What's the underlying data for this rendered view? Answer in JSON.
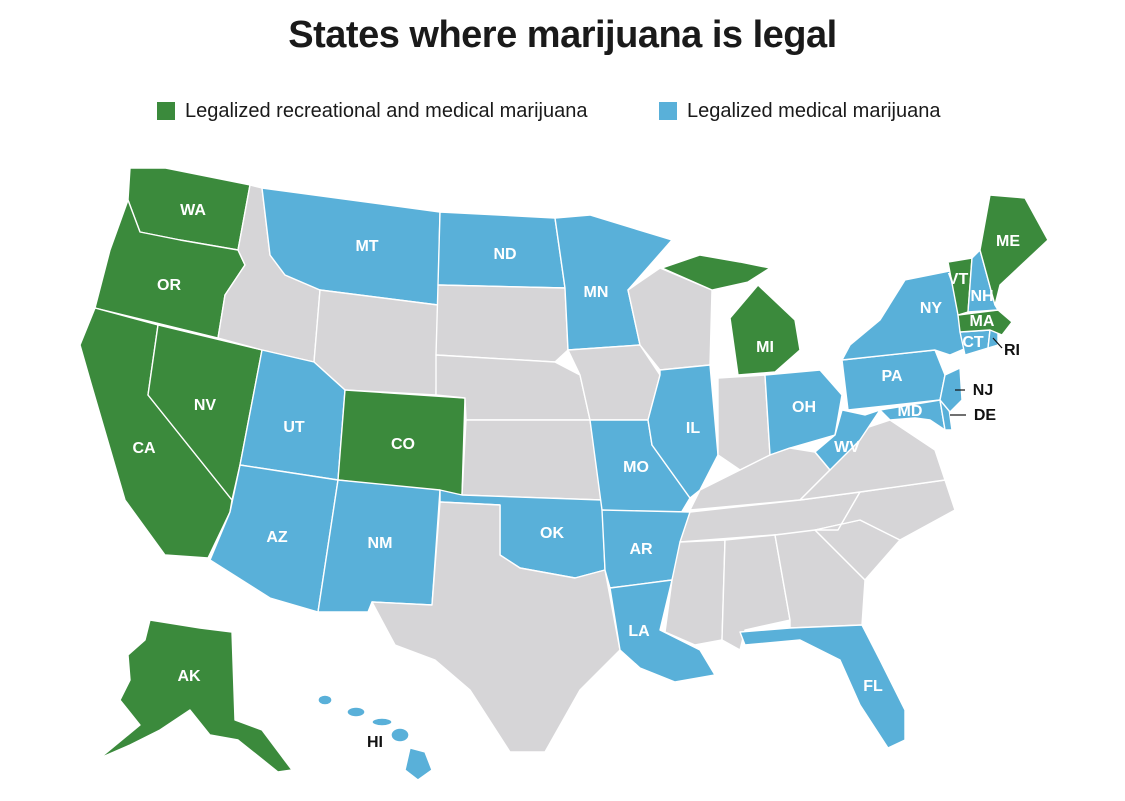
{
  "title": "States where marijuana is legal",
  "colors": {
    "recreational": "#3b8a3c",
    "medical": "#59b0d9",
    "none": "#d6d5d7"
  },
  "legend": [
    {
      "key": "recreational",
      "label": "Legalized recreational and medical marijuana"
    },
    {
      "key": "medical",
      "label": "Legalized medical marijuana"
    }
  ],
  "states": {
    "WA": "recreational",
    "OR": "recreational",
    "CA": "recreational",
    "NV": "recreational",
    "CO": "recreational",
    "AK": "recreational",
    "MI": "recreational",
    "ME": "recreational",
    "VT": "recreational",
    "MA": "recreational",
    "MT": "medical",
    "ND": "medical",
    "MN": "medical",
    "UT": "medical",
    "AZ": "medical",
    "NM": "medical",
    "OK": "medical",
    "AR": "medical",
    "LA": "medical",
    "MO": "medical",
    "IL": "medical",
    "OH": "medical",
    "WV": "medical",
    "PA": "medical",
    "NY": "medical",
    "NH": "medical",
    "CT": "medical",
    "RI": "medical",
    "NJ": "medical",
    "DE": "medical",
    "MD": "medical",
    "FL": "medical",
    "HI": "medical",
    "ID": "none",
    "WY": "none",
    "SD": "none",
    "NE": "none",
    "KS": "none",
    "TX": "none",
    "IA": "none",
    "WI": "none",
    "IN": "none",
    "KY": "none",
    "TN": "none",
    "MS": "none",
    "AL": "none",
    "GA": "none",
    "SC": "none",
    "NC": "none",
    "VA": "none"
  },
  "labels": {
    "WA": "WA",
    "OR": "OR",
    "CA": "CA",
    "NV": "NV",
    "CO": "CO",
    "AK": "AK",
    "MI": "MI",
    "ME": "ME",
    "VT": "VT",
    "MA": "MA",
    "MT": "MT",
    "ND": "ND",
    "MN": "MN",
    "UT": "UT",
    "AZ": "AZ",
    "NM": "NM",
    "OK": "OK",
    "AR": "AR",
    "LA": "LA",
    "MO": "MO",
    "IL": "IL",
    "OH": "OH",
    "WV": "WV",
    "PA": "PA",
    "NY": "NY",
    "NH": "NH",
    "CT": "CT",
    "RI": "RI",
    "NJ": "NJ",
    "DE": "DE",
    "MD": "MD",
    "FL": "FL",
    "HI": "HI"
  }
}
